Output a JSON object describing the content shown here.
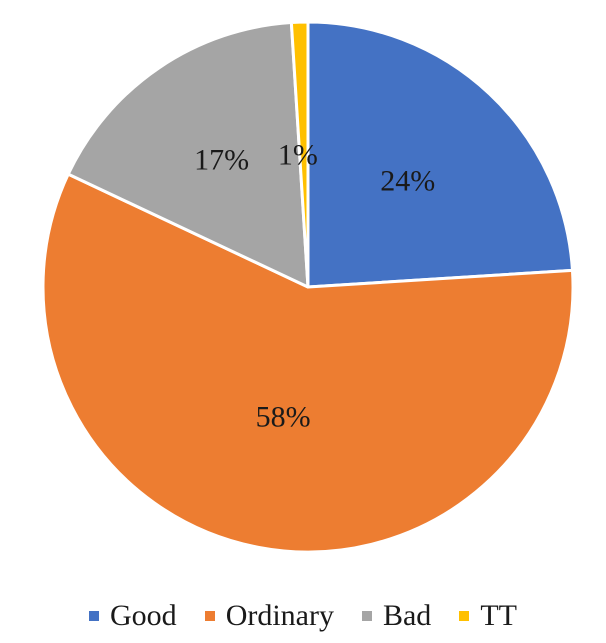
{
  "chart_data": {
    "type": "pie",
    "categories": [
      "Good",
      "Ordinary",
      "Bad",
      "TT"
    ],
    "values": [
      24,
      58,
      17,
      1
    ],
    "data_labels": [
      "24%",
      "58%",
      "17%",
      "1%"
    ],
    "colors": [
      "#4472C4",
      "#ED7D31",
      "#A5A5A5",
      "#FFC000"
    ],
    "legend_position": "bottom",
    "title": ""
  }
}
